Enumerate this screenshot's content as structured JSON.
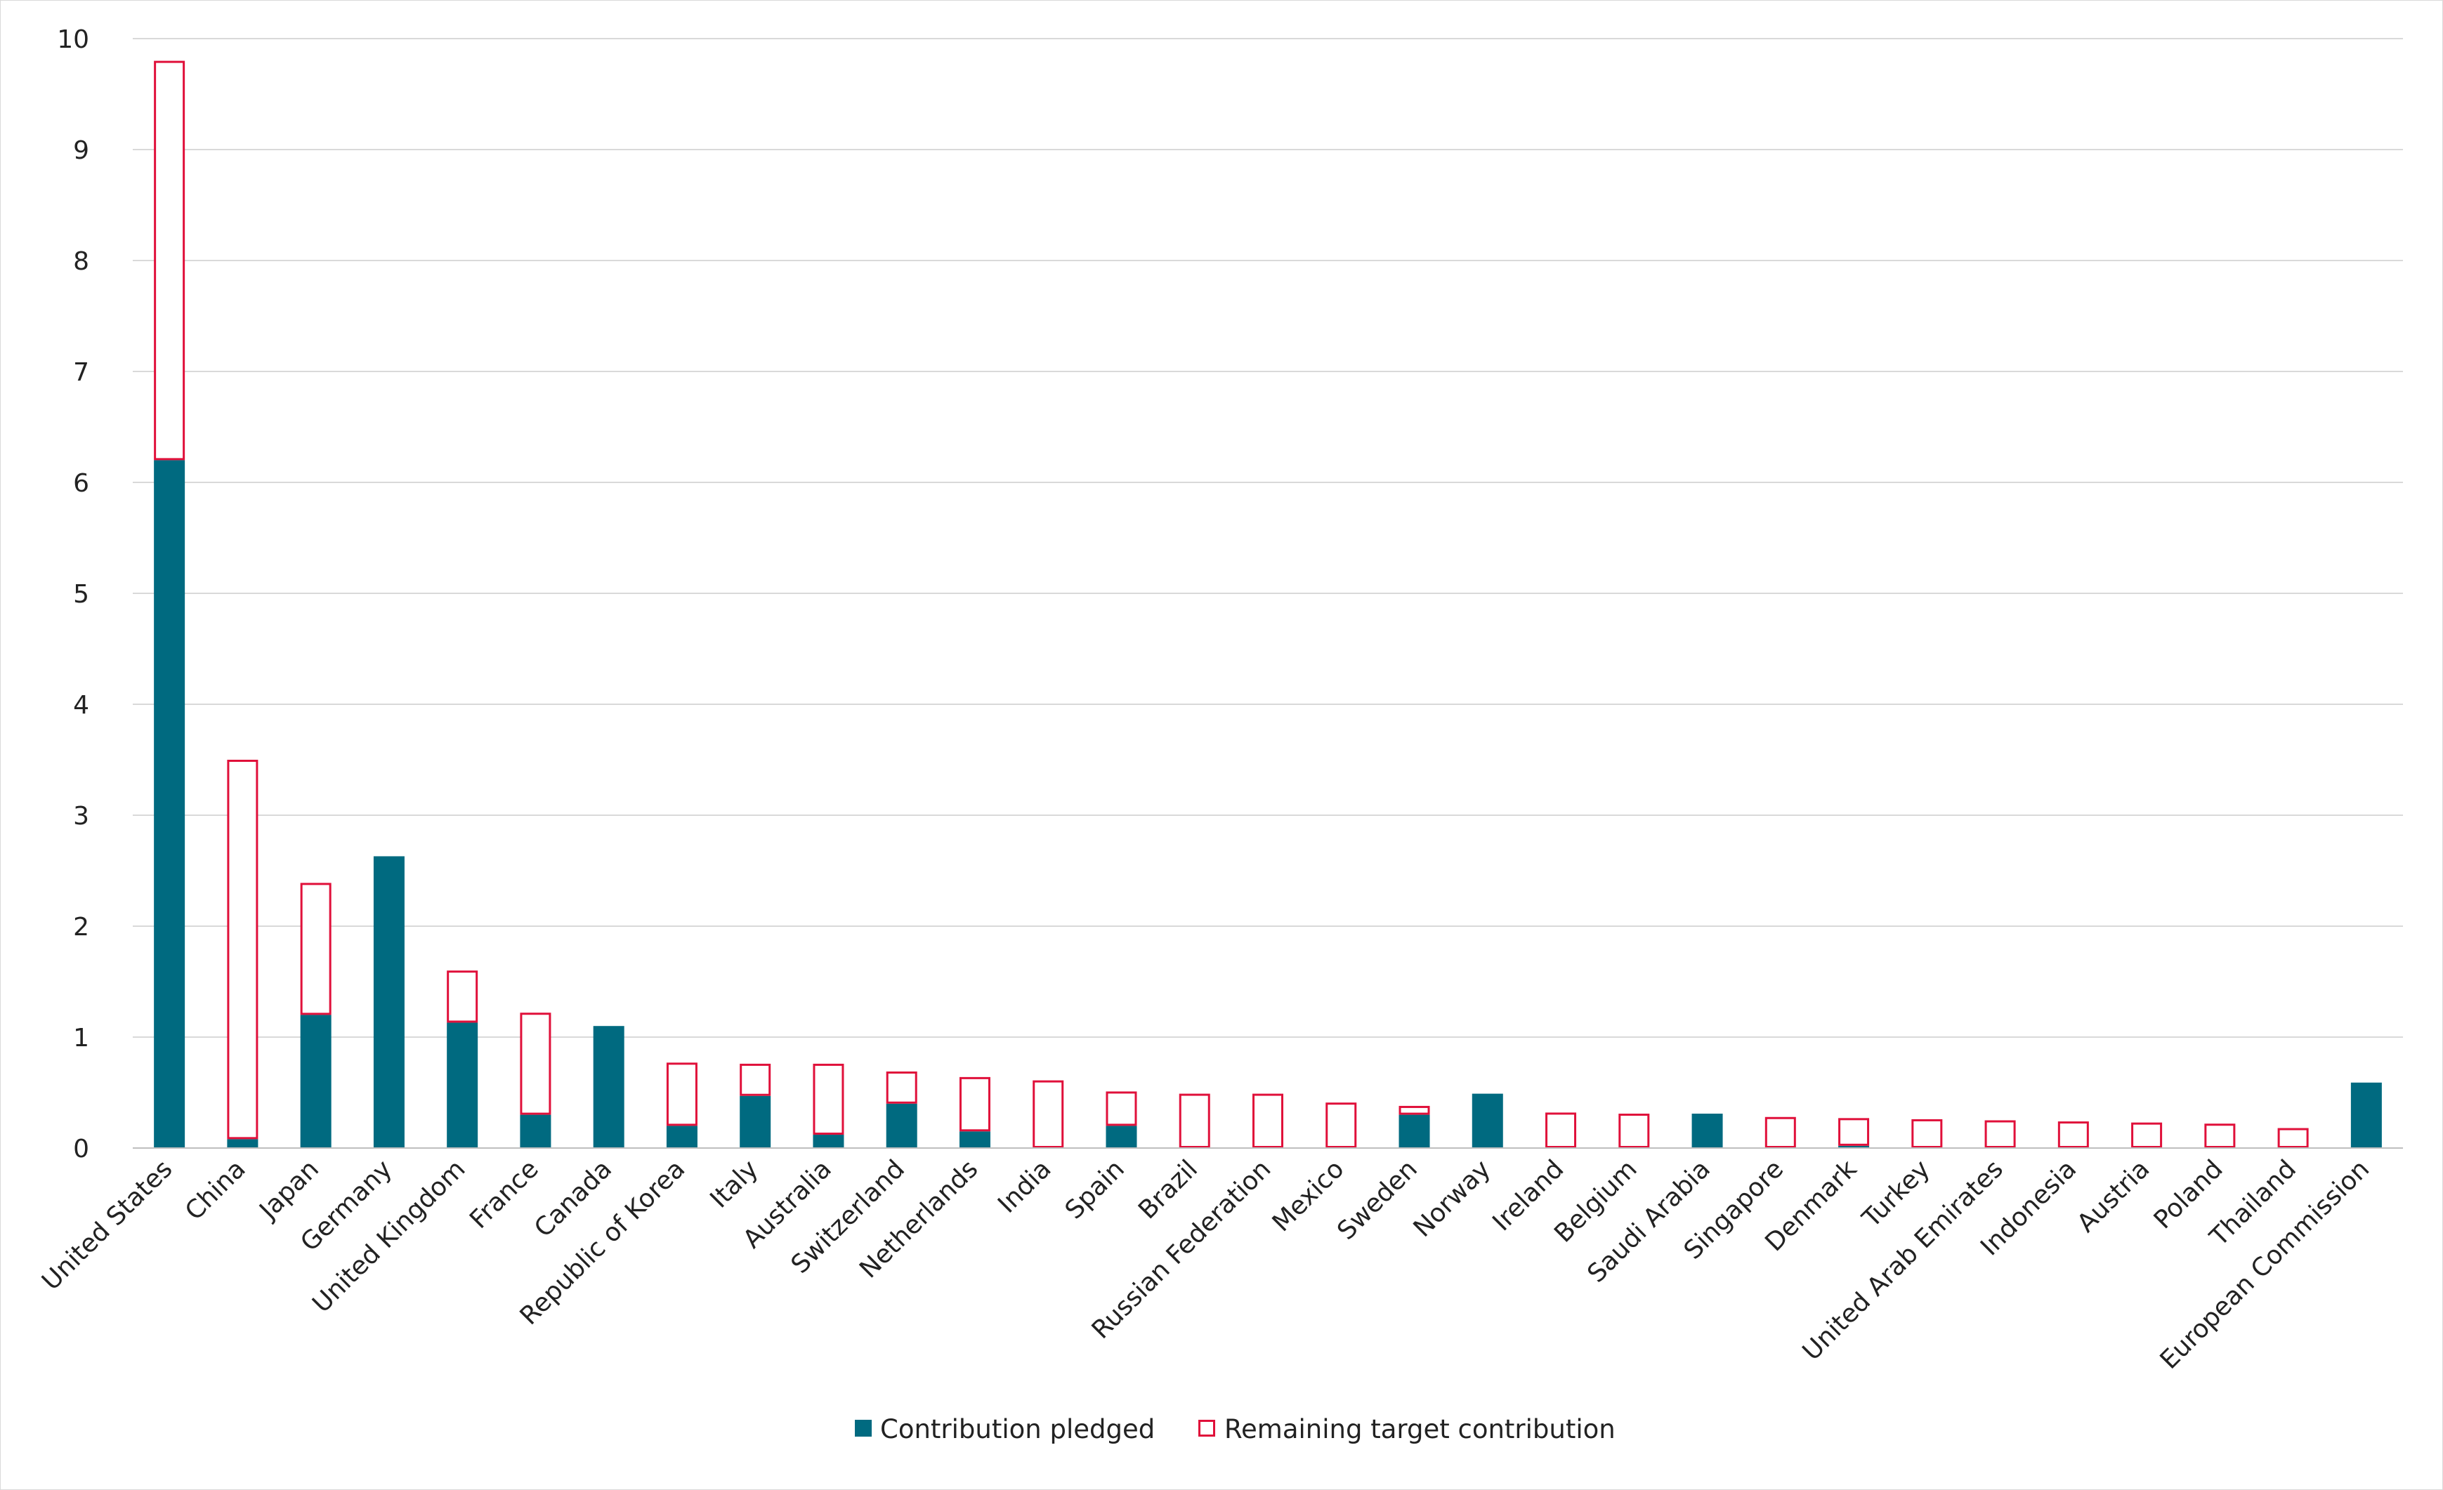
{
  "chart_data": {
    "type": "bar",
    "stacked": true,
    "categories": [
      "United States",
      "China",
      "Japan",
      "Germany",
      "United Kingdom",
      "France",
      "Canada",
      "Republic of Korea",
      "Italy",
      "Australia",
      "Switzerland",
      "Netherlands",
      "India",
      "Spain",
      "Brazil",
      "Russian Federation",
      "Mexico",
      "Sweden",
      "Norway",
      "Ireland",
      "Belgium",
      "Saudi Arabia",
      "Singapore",
      "Denmark",
      "Turkey",
      "United Arab Emirates",
      "Indonesia",
      "Austria",
      "Poland",
      "Thailand",
      "European Commission"
    ],
    "series": [
      {
        "name": "Contribution pledged",
        "color": "#006a80",
        "style": "filled",
        "values": [
          6.2,
          0.08,
          1.2,
          2.63,
          1.13,
          0.3,
          1.1,
          0.2,
          0.47,
          0.12,
          0.4,
          0.15,
          0.0,
          0.2,
          0.0,
          0.0,
          0.0,
          0.3,
          0.49,
          0.0,
          0.0,
          0.31,
          0.0,
          0.02,
          0.0,
          0.0,
          0.0,
          0.0,
          0.0,
          0.0,
          0.59
        ]
      },
      {
        "name": "Remaining target contribution",
        "color": "#e0103a",
        "style": "outline",
        "values": [
          3.6,
          3.42,
          1.19,
          0.0,
          0.47,
          0.92,
          0.0,
          0.57,
          0.29,
          0.64,
          0.29,
          0.49,
          0.61,
          0.31,
          0.49,
          0.49,
          0.41,
          0.08,
          0.0,
          0.32,
          0.31,
          0.0,
          0.28,
          0.25,
          0.26,
          0.25,
          0.24,
          0.23,
          0.22,
          0.18,
          0.0
        ]
      }
    ],
    "y_ticks": [
      "0",
      "1",
      "2",
      "3",
      "4",
      "5",
      "6",
      "7",
      "8",
      "9",
      "10"
    ],
    "ylim": [
      0,
      10
    ],
    "grid": true,
    "legend_position": "bottom-center"
  }
}
